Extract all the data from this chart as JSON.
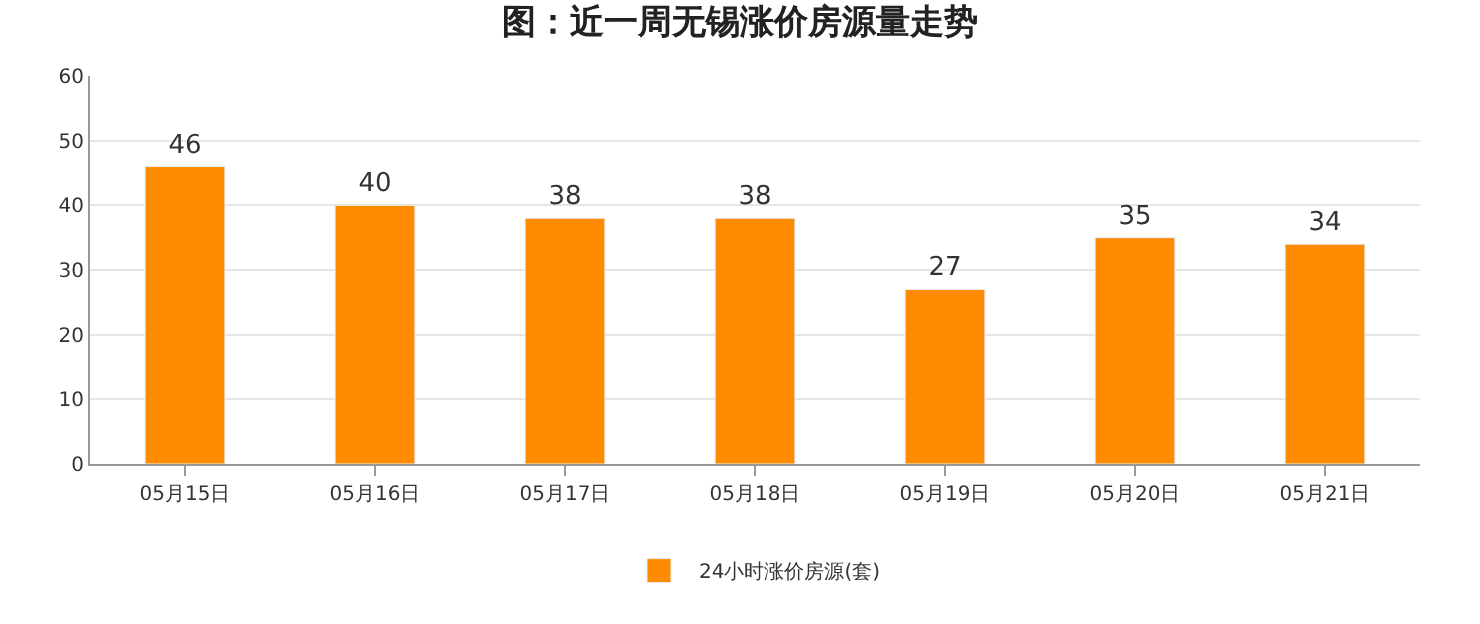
{
  "chart_data": {
    "type": "bar",
    "title": "图：近一周无锡涨价房源量走势",
    "categories": [
      "05月15日",
      "05月16日",
      "05月17日",
      "05月18日",
      "05月19日",
      "05月20日",
      "05月21日"
    ],
    "series": [
      {
        "name": "24小时涨价房源(套)",
        "color": "#ff8c00",
        "values": [
          46,
          40,
          38,
          38,
          27,
          35,
          34
        ]
      }
    ],
    "ylim": [
      0,
      60
    ],
    "yticks": [
      0,
      10,
      20,
      30,
      40,
      50,
      60
    ],
    "grid": "y",
    "legend": "bottom",
    "data_labels": true
  }
}
